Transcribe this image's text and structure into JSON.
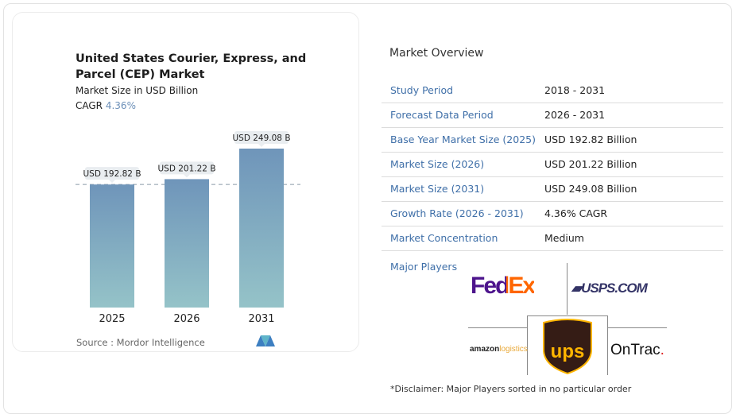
{
  "chart_data": {
    "type": "bar",
    "title": "United States Courier, Express, and Parcel (CEP) Market",
    "subtitle": "Market Size in USD Billion",
    "cagr_label": "CAGR",
    "cagr_value": "4.36%",
    "categories": [
      "2025",
      "2026",
      "2031"
    ],
    "values": [
      192.82,
      201.22,
      249.08
    ],
    "data_labels": [
      "USD 192.82 B",
      "USD 201.22 B",
      "USD 249.08 B"
    ],
    "ylim": [
      0,
      249.08
    ],
    "reference_line": 192.82,
    "colors": {
      "bar_top": "#6f95ba",
      "bar_bottom": "#95c3c8"
    },
    "source": "Source :  Mordor Intelligence"
  },
  "overview": {
    "title": "Market Overview",
    "rows": [
      {
        "label": "Study Period",
        "value": "2018 - 2031"
      },
      {
        "label": "Forecast Data Period",
        "value": "2026 - 2031"
      },
      {
        "label": "Base Year Market Size (2025)",
        "value": "USD 192.82 Billion"
      },
      {
        "label": "Market Size (2026)",
        "value": "USD 201.22 Billion"
      },
      {
        "label": "Market Size (2031)",
        "value": "USD 249.08 Billion"
      },
      {
        "label": "Growth Rate (2026 - 2031)",
        "value": "4.36% CAGR"
      },
      {
        "label": "Market Concentration",
        "value": "Medium"
      }
    ],
    "major_players_label": "Major Players",
    "players": [
      "FedEx",
      "USPS.COM",
      "UPS",
      "amazon logistics",
      "OnTrac"
    ],
    "disclaimer": "*Disclaimer: Major Players sorted in no particular order"
  }
}
